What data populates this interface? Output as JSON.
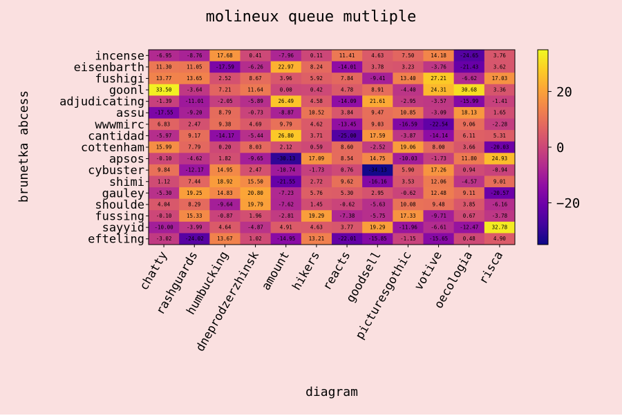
{
  "background": "#fae0e0",
  "chart_data": {
    "type": "heatmap",
    "title": "molineux queue mutliple",
    "xlabel": "diagram",
    "ylabel": "brunetka abcess",
    "colormap": "plasma",
    "vmin": -35,
    "vmax": 35,
    "colorbar_ticks": [
      "20",
      "0",
      "−20"
    ],
    "colorbar_tick_values": [
      20,
      0,
      -20
    ],
    "columns": [
      "chatty",
      "rashguards",
      "humbucking",
      "dneprodzerzhinsk",
      "amount",
      "hikers",
      "reacts",
      "goodsell",
      "picturesgothic",
      "votive",
      "oecologia",
      "risca"
    ],
    "rows": [
      "incense",
      "eisenbarth",
      "fushigi",
      "goonl",
      "adjudicating",
      "assu",
      "wwwmirc",
      "cantidad",
      "cottenham",
      "apsos",
      "cybuster",
      "shimi",
      "gauley",
      "shoulde",
      "fussing",
      "sayyid",
      "efteling"
    ],
    "values": [
      [
        -6.95,
        -8.76,
        17.68,
        0.41,
        -7.96,
        0.11,
        11.41,
        4.63,
        7.5,
        14.18,
        -24.65,
        3.76
      ],
      [
        11.3,
        11.05,
        -17.59,
        -6.26,
        22.97,
        8.24,
        -14.01,
        3.78,
        3.23,
        -3.76,
        -21.43,
        3.62
      ],
      [
        13.77,
        13.65,
        2.52,
        8.67,
        3.96,
        5.92,
        7.84,
        -9.41,
        13.4,
        27.21,
        -6.62,
        17.03
      ],
      [
        33.5,
        -3.64,
        7.21,
        11.64,
        0.0,
        0.42,
        4.78,
        8.91,
        -4.4,
        24.31,
        30.68,
        3.36
      ],
      [
        -1.39,
        -11.01,
        -2.05,
        -5.89,
        26.49,
        4.58,
        -14.09,
        21.61,
        -2.95,
        -3.57,
        -15.99,
        -1.41
      ],
      [
        -17.55,
        -9.2,
        8.79,
        -0.73,
        -8.87,
        10.52,
        3.84,
        9.47,
        10.85,
        -3.09,
        18.13,
        1.65
      ],
      [
        6.83,
        2.47,
        9.38,
        4.69,
        9.79,
        4.62,
        -13.45,
        9.03,
        -16.59,
        -22.54,
        9.06,
        -2.28
      ],
      [
        -5.97,
        9.17,
        -14.17,
        -5.44,
        26.8,
        3.71,
        -25.0,
        17.59,
        -3.87,
        -14.14,
        6.11,
        5.31
      ],
      [
        15.99,
        7.79,
        0.2,
        8.03,
        2.12,
        0.59,
        8.6,
        -2.52,
        19.06,
        8.0,
        3.66,
        -20.03
      ],
      [
        -0.1,
        -4.62,
        1.82,
        -9.65,
        -30.13,
        17.09,
        8.54,
        14.75,
        -10.03,
        -1.73,
        11.8,
        24.93
      ],
      [
        9.84,
        -12.17,
        14.95,
        2.47,
        -10.74,
        -1.73,
        0.76,
        -34.13,
        5.9,
        17.26,
        0.94,
        -0.94
      ],
      [
        1.12,
        7.44,
        18.92,
        15.5,
        -21.55,
        2.72,
        9.62,
        -16.16,
        3.53,
        12.06,
        -4.57,
        9.01
      ],
      [
        -5.3,
        19.25,
        14.83,
        20.8,
        -7.23,
        5.76,
        5.3,
        2.95,
        -0.62,
        12.48,
        9.11,
        -20.57
      ],
      [
        4.04,
        8.29,
        -9.64,
        19.79,
        -7.62,
        1.45,
        -0.62,
        -5.63,
        10.08,
        9.48,
        3.85,
        -6.16
      ],
      [
        -0.1,
        15.33,
        -0.87,
        1.96,
        -2.81,
        19.29,
        -7.38,
        -5.75,
        17.33,
        -9.71,
        0.67,
        -3.78
      ],
      [
        -10.0,
        -3.99,
        4.64,
        -4.87,
        4.91,
        4.63,
        3.77,
        19.29,
        -11.96,
        -6.61,
        -12.47,
        32.78
      ],
      [
        -3.02,
        -24.02,
        13.67,
        1.02,
        -14.95,
        13.21,
        -22.01,
        -15.85,
        -1.15,
        -15.65,
        0.48,
        4.9
      ]
    ]
  }
}
